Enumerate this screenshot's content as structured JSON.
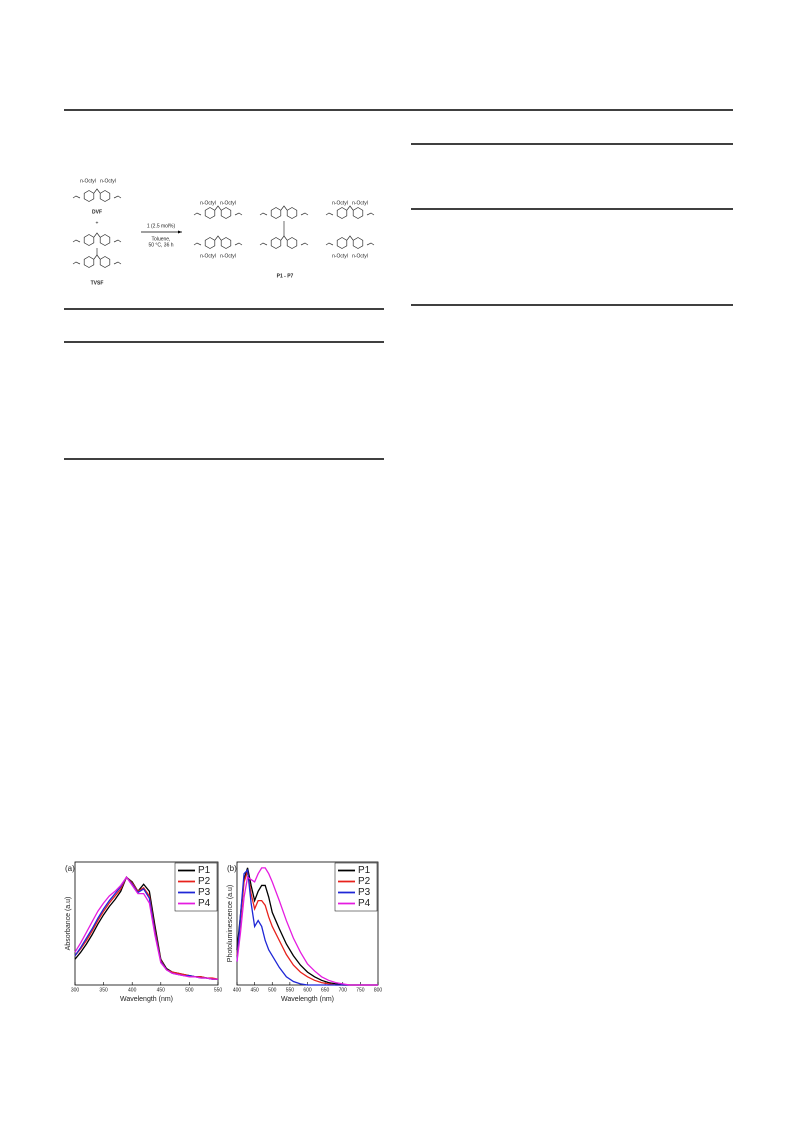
{
  "scheme": {
    "reactant1": {
      "substituents": [
        "n-Octyl",
        "n-Octyl"
      ],
      "name": "DVF"
    },
    "plus": "+",
    "reactant2": {
      "name": "TVSF"
    },
    "conditions": [
      "1 (2.5 mol%)",
      "Toluene,",
      "50 °C, 36 h"
    ],
    "product": {
      "substituents": [
        "n-Octyl",
        "n-Octyl",
        "n-Octyl",
        "n-Octyl",
        "n-Octyl",
        "n-Octyl",
        "n-Octyl",
        "n-Octyl"
      ],
      "name": "P1 - P7"
    }
  },
  "chart_data": [
    {
      "type": "line",
      "label": "(a)",
      "xlabel": "Wavelength (nm)",
      "ylabel": "Absorbance (a.u)",
      "x": [
        300,
        310,
        320,
        330,
        340,
        350,
        360,
        370,
        380,
        390,
        400,
        410,
        420,
        430,
        440,
        450,
        460,
        470,
        480,
        490,
        500,
        510,
        520,
        530,
        540,
        550
      ],
      "xlim": [
        300,
        550
      ],
      "xticks": [
        300,
        350,
        400,
        450,
        500,
        550
      ],
      "ylim": [
        0,
        1.05
      ],
      "legend": "upper right",
      "series": [
        {
          "name": "P1",
          "color": "#000000",
          "values": [
            0.22,
            0.28,
            0.35,
            0.43,
            0.52,
            0.6,
            0.67,
            0.73,
            0.8,
            0.92,
            0.88,
            0.8,
            0.86,
            0.8,
            0.5,
            0.22,
            0.14,
            0.11,
            0.1,
            0.09,
            0.08,
            0.07,
            0.07,
            0.06,
            0.05,
            0.05
          ]
        },
        {
          "name": "P2",
          "color": "#e8221c",
          "values": [
            0.25,
            0.31,
            0.38,
            0.46,
            0.55,
            0.63,
            0.7,
            0.76,
            0.82,
            0.92,
            0.87,
            0.8,
            0.83,
            0.76,
            0.46,
            0.21,
            0.13,
            0.11,
            0.1,
            0.09,
            0.08,
            0.07,
            0.07,
            0.06,
            0.06,
            0.05
          ]
        },
        {
          "name": "P3",
          "color": "#1f27d6",
          "values": [
            0.25,
            0.32,
            0.4,
            0.48,
            0.57,
            0.65,
            0.72,
            0.78,
            0.84,
            0.92,
            0.86,
            0.79,
            0.82,
            0.74,
            0.44,
            0.2,
            0.13,
            0.1,
            0.09,
            0.08,
            0.08,
            0.07,
            0.06,
            0.06,
            0.05,
            0.05
          ]
        },
        {
          "name": "P4",
          "color": "#e51ce0",
          "values": [
            0.28,
            0.36,
            0.45,
            0.54,
            0.63,
            0.7,
            0.76,
            0.8,
            0.85,
            0.92,
            0.85,
            0.78,
            0.78,
            0.7,
            0.42,
            0.19,
            0.13,
            0.1,
            0.09,
            0.08,
            0.07,
            0.07,
            0.06,
            0.06,
            0.05,
            0.05
          ]
        }
      ]
    },
    {
      "type": "line",
      "label": "(b)",
      "xlabel": "Wavelength (nm)",
      "ylabel": "Photoluminescence (a.u)",
      "x": [
        400,
        410,
        420,
        430,
        440,
        450,
        460,
        470,
        480,
        490,
        500,
        520,
        540,
        560,
        580,
        600,
        620,
        640,
        660,
        680,
        700,
        720,
        740,
        760,
        780,
        800
      ],
      "xlim": [
        400,
        800
      ],
      "xticks": [
        400,
        450,
        500,
        550,
        600,
        650,
        700,
        750,
        800
      ],
      "ylim": [
        0,
        1.05
      ],
      "legend": "upper right",
      "series": [
        {
          "name": "P1",
          "color": "#000000",
          "values": [
            0.3,
            0.6,
            0.9,
            1.0,
            0.85,
            0.72,
            0.8,
            0.85,
            0.85,
            0.75,
            0.62,
            0.48,
            0.35,
            0.25,
            0.17,
            0.11,
            0.07,
            0.04,
            0.02,
            0.01,
            0,
            0,
            0,
            0,
            0,
            0
          ]
        },
        {
          "name": "P2",
          "color": "#e8221c",
          "values": [
            0.25,
            0.55,
            0.88,
            0.97,
            0.78,
            0.65,
            0.72,
            0.72,
            0.68,
            0.58,
            0.5,
            0.38,
            0.26,
            0.17,
            0.11,
            0.07,
            0.04,
            0.02,
            0.01,
            0,
            0,
            0,
            0,
            0,
            0,
            0
          ]
        },
        {
          "name": "P3",
          "color": "#1f27d6",
          "values": [
            0.2,
            0.6,
            0.95,
            0.98,
            0.7,
            0.5,
            0.55,
            0.5,
            0.38,
            0.3,
            0.25,
            0.15,
            0.07,
            0.03,
            0.01,
            0,
            0,
            0,
            0,
            0,
            0,
            0,
            0,
            0,
            0,
            0
          ]
        },
        {
          "name": "P4",
          "color": "#e51ce0",
          "values": [
            0.2,
            0.45,
            0.75,
            0.92,
            0.9,
            0.88,
            0.95,
            1.0,
            1.0,
            0.95,
            0.88,
            0.72,
            0.55,
            0.4,
            0.28,
            0.18,
            0.12,
            0.07,
            0.04,
            0.02,
            0.01,
            0,
            0,
            0,
            0,
            0
          ]
        }
      ]
    }
  ]
}
